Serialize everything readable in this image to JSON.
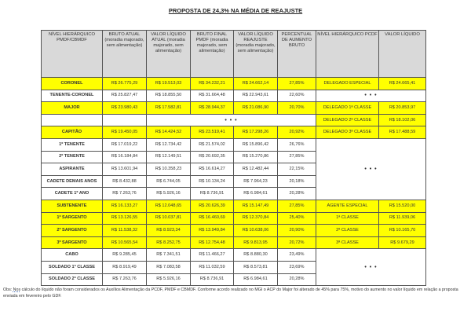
{
  "title": "PROPOSTA DE 24,3% NA MÉDIA DE REAJUSTE",
  "headers": [
    "NÍVEL HIERÁRQUICO PMDF/CBMDF",
    "BRUTO ATUAL (moradia majorado, sem alimentação)",
    "VALOR LÍQUIDO ATUAL (moradia majorado, sem alimentação)",
    "BRUTO FINAL PMDF (moradia majorado, sem alimentação)",
    "VALOR LÍQUIDO REAJUSTE (moradia majorado, sem alimentação)",
    "PERCENTUAL DE AUMENTO BRUTO",
    "NÍVEL HIERÁRQUICO PCDF",
    "VALOR LÍQUIDO"
  ],
  "dots": "• • •",
  "highlight_color": "#ffff00",
  "rows": [
    {
      "name": "CORONEL",
      "bruto": "R$ 26.775,29",
      "liq": "R$ 19.513,03",
      "final": "R$ 34.232,21",
      "reaj": "R$ 24.662,14",
      "pct": "27,85%",
      "pcdf": "DELEGADO ESPECIAL",
      "pcdf_val": "R$ 24.665,41",
      "hl": true
    },
    {
      "name": "TENENTE-CORONEL",
      "bruto": "R$ 25.827,47",
      "liq": "R$ 18.855,50",
      "final": "R$ 31.664,48",
      "reaj": "R$ 22.943,61",
      "pct": "22,60%",
      "hl": false
    },
    {
      "name": "MAJOR",
      "bruto": "R$ 23.980,43",
      "liq": "R$ 17.582,81",
      "final": "R$ 28.944,37",
      "reaj": "R$ 21.086,90",
      "pct": "20,70%",
      "pcdf": "DELEGADO 1ª CLASSE",
      "pcdf_val": "R$ 20.853,97",
      "hl": true
    },
    {
      "pcdf": "DELEGADO 2ª CLASSE",
      "pcdf_val": "R$ 18.102,06"
    },
    {
      "name": "CAPITÃO",
      "bruto": "R$ 19.450,05",
      "liq": "R$ 14.424,52",
      "final": "R$ 23.519,41",
      "reaj": "R$ 17.298,26",
      "pct": "20,92%",
      "pcdf": "DELEGADO 3ª CLASSE",
      "pcdf_val": "R$ 17.488,59",
      "hl": true
    },
    {
      "name": "1º TENENTE",
      "bruto": "R$ 17.019,22",
      "liq": "R$ 12.734,42",
      "final": "R$ 21.574,02",
      "reaj": "R$ 15.896,42",
      "pct": "26,76%",
      "hl": false
    },
    {
      "name": "2º TENENTE",
      "bruto": "R$ 16.184,84",
      "liq": "R$ 12.149,51",
      "final": "R$ 20.692,35",
      "reaj": "R$ 15.270,86",
      "pct": "27,85%",
      "hl": false
    },
    {
      "name": "ASPIRANTE",
      "bruto": "R$ 13.601,94",
      "liq": "R$ 10.358,23",
      "final": "R$ 16.614,27",
      "reaj": "R$ 12.482,44",
      "pct": "22,15%",
      "hl": false
    },
    {
      "name": "CADETE DEMAIS ANOS",
      "bruto": "R$ 8.432,88",
      "liq": "R$ 6.744,05",
      "final": "R$ 10.134,24",
      "reaj": "R$ 7.964,23",
      "pct": "20,18%",
      "hl": false
    },
    {
      "name": "CADETE 1º ANO",
      "bruto": "R$ 7.263,76",
      "liq": "R$ 5.926,16",
      "final": "R$ 8.736,91",
      "reaj": "R$ 6.984,61",
      "pct": "20,28%",
      "hl": false
    },
    {
      "name": "SUBTENENTE",
      "bruto": "R$ 16.133,27",
      "liq": "R$ 12.048,65",
      "final": "R$ 20.626,39",
      "reaj": "R$ 15.147,49",
      "pct": "27,85%",
      "pcdf": "AGENTE ESPECIAL",
      "pcdf_val": "R$ 15.520,00",
      "hl": true
    },
    {
      "name": "1º SARGENTO",
      "bruto": "R$ 13.126,55",
      "liq": "R$ 10.037,81",
      "final": "R$ 16.460,69",
      "reaj": "R$ 12.370,84",
      "pct": "25,40%",
      "pcdf": "1ª CLASSE",
      "pcdf_val": "R$ 11.939,06",
      "hl": true
    },
    {
      "name": "2º SARGENTO",
      "bruto": "R$ 11.538,32",
      "liq": "R$ 8.923,34",
      "final": "R$ 13.949,84",
      "reaj": "R$ 10.638,06",
      "pct": "20,90%",
      "pcdf": "2ª CLASSE",
      "pcdf_val": "R$ 10.165,70",
      "hl": true
    },
    {
      "name": "3º SARGENTO",
      "bruto": "R$ 10.565,54",
      "liq": "R$ 8.252,75",
      "final": "R$ 12.754,48",
      "reaj": "R$ 9.813,95",
      "pct": "20,72%",
      "pcdf": "3ª CLASSE",
      "pcdf_val": "R$ 9.679,29",
      "hl": true
    },
    {
      "name": "CABO",
      "bruto": "R$ 9.285,45",
      "liq": "R$ 7.341,51",
      "final": "R$ 11.466,27",
      "reaj": "R$ 8.880,30",
      "pct": "23,49%",
      "hl": false
    },
    {
      "name": "SOLDADO 1ª CLASSE",
      "bruto": "R$ 8.919,49",
      "liq": "R$ 7.083,58",
      "final": "R$ 11.032,59",
      "reaj": "R$ 8.573,81",
      "pct": "23,69%",
      "hl": false
    },
    {
      "name": "SOLDADO 2ª CLASSE",
      "bruto": "R$ 7.263,76",
      "liq": "R$ 5.926,16",
      "final": "R$ 8.736,91",
      "reaj": "R$ 6.984,61",
      "pct": "20,28%",
      "hl": false
    }
  ],
  "obs": {
    "prefix": "Obs: ",
    "word": "Nos",
    "text": " cálculo do líquido não foram considerados os Auxílios Alimentação da PCDF, PMDF e CBMDF. Conforme acordo realizado no MGI o ACP do Major foi alterado de 45% para 75%, motivo do aumento no valor líquido em relação a proposta enviada em fevereiro pelo GDF."
  }
}
